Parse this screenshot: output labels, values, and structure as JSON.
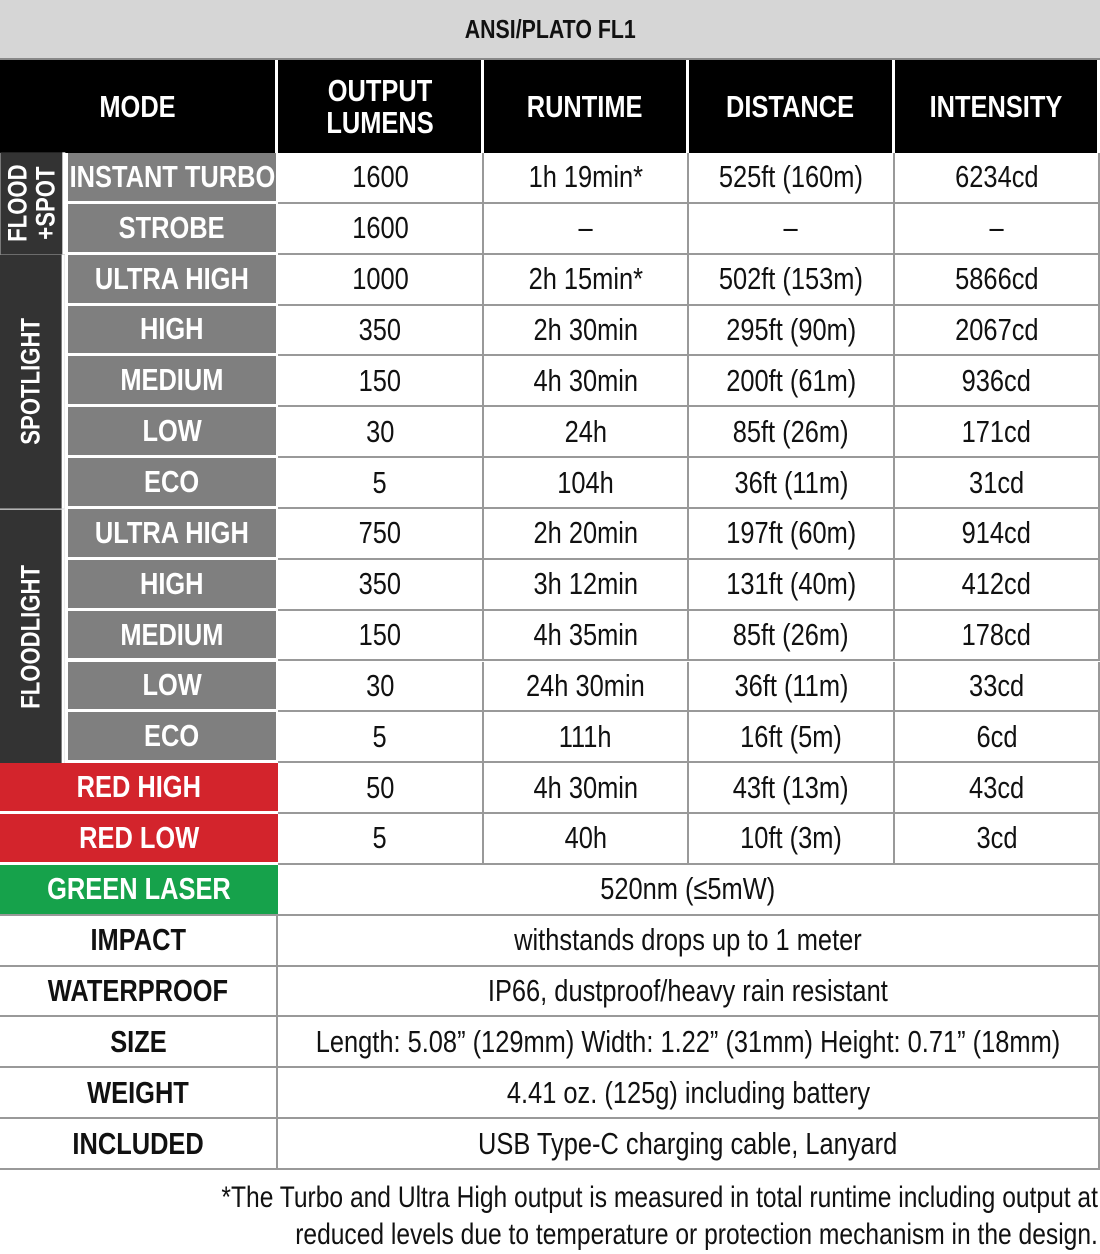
{
  "header": {
    "title": "ANSI/PLATO FL1"
  },
  "columns": [
    "MODE",
    "OUTPUT LUMENS",
    "RUNTIME",
    "DISTANCE",
    "INTENSITY"
  ],
  "groups": [
    {
      "label": [
        "FLOOD",
        "+SPOT"
      ],
      "rows": [
        {
          "mode": "INSTANT TURBO",
          "values": [
            "1600",
            "1h 19min*",
            "525ft (160m)",
            "6234cd"
          ]
        },
        {
          "mode": "STROBE",
          "values": [
            "1600",
            "–",
            "–",
            "–"
          ]
        }
      ]
    },
    {
      "label": [
        "SPOTLIGHT"
      ],
      "rows": [
        {
          "mode": "ULTRA HIGH",
          "values": [
            "1000",
            "2h 15min*",
            "502ft (153m)",
            "5866cd"
          ]
        },
        {
          "mode": "HIGH",
          "values": [
            "350",
            "2h 30min",
            "295ft (90m)",
            "2067cd"
          ]
        },
        {
          "mode": "MEDIUM",
          "values": [
            "150",
            "4h 30min",
            "200ft (61m)",
            "936cd"
          ]
        },
        {
          "mode": "LOW",
          "values": [
            "30",
            "24h",
            "85ft (26m)",
            "171cd"
          ]
        },
        {
          "mode": "ECO",
          "values": [
            "5",
            "104h",
            "36ft (11m)",
            "31cd"
          ]
        }
      ]
    },
    {
      "label": [
        "FLOODLIGHT"
      ],
      "rows": [
        {
          "mode": "ULTRA HIGH",
          "values": [
            "750",
            "2h 20min",
            "197ft (60m)",
            "914cd"
          ]
        },
        {
          "mode": "HIGH",
          "values": [
            "350",
            "3h 12min",
            "131ft (40m)",
            "412cd"
          ]
        },
        {
          "mode": "MEDIUM",
          "values": [
            "150",
            "4h 35min",
            "85ft (26m)",
            "178cd"
          ]
        },
        {
          "mode": "LOW",
          "values": [
            "30",
            "24h 30min",
            "36ft (11m)",
            "33cd"
          ]
        },
        {
          "mode": "ECO",
          "values": [
            "5",
            "111h",
            "16ft (5m)",
            "6cd"
          ]
        }
      ]
    }
  ],
  "red_modes": [
    {
      "mode": "RED HIGH",
      "values": [
        "50",
        "4h 30min",
        "43ft (13m)",
        "43cd"
      ]
    },
    {
      "mode": "RED LOW",
      "values": [
        "5",
        "40h",
        "10ft (3m)",
        "3cd"
      ]
    }
  ],
  "green_laser": {
    "mode": "GREEN LASER",
    "value": "520nm (≤5mW)"
  },
  "specs": [
    {
      "label": "IMPACT",
      "value": "withstands drops up to 1 meter"
    },
    {
      "label": "WATERPROOF",
      "value": "IP66, dustproof/heavy rain resistant"
    },
    {
      "label": "SIZE",
      "value": "Length: 5.08” (129mm) Width: 1.22” (31mm) Height: 0.71” (18mm)"
    },
    {
      "label": "WEIGHT",
      "value": "4.41 oz. (125g) including battery"
    },
    {
      "label": "INCLUDED",
      "value": "USB Type-C charging cable, Lanyard"
    }
  ],
  "footnote": [
    "*The Turbo and Ultra High output is measured in total runtime including output at",
    "reduced levels due to temperature or protection mechanism in the design."
  ]
}
